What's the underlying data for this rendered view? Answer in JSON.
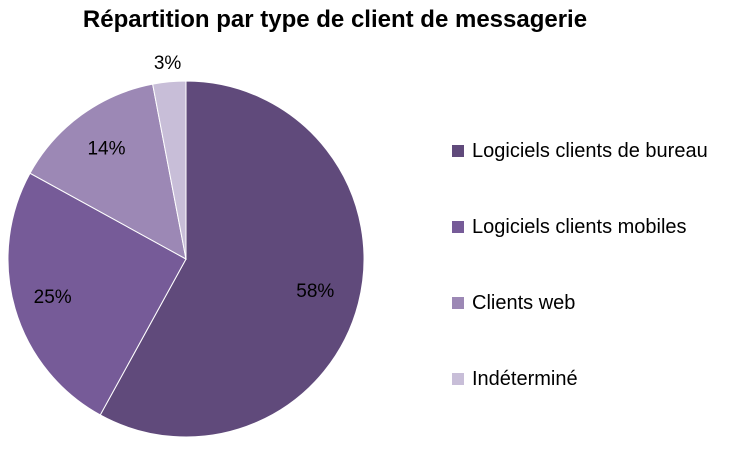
{
  "chart_data": {
    "type": "pie",
    "title": "Répartition par type de client de messagerie",
    "slices": [
      {
        "label": "Logiciels clients de bureau",
        "value": 58,
        "display": "58%",
        "color": "#604a7b"
      },
      {
        "label": "Logiciels clients mobiles",
        "value": 25,
        "display": "25%",
        "color": "#765b98"
      },
      {
        "label": "Clients web",
        "value": 14,
        "display": "14%",
        "color": "#9c88b5"
      },
      {
        "label": "Indéterminé",
        "value": 3,
        "display": "3%",
        "color": "#c8bed8"
      }
    ],
    "legend_position": "right",
    "start_angle": "top, clockwise"
  }
}
